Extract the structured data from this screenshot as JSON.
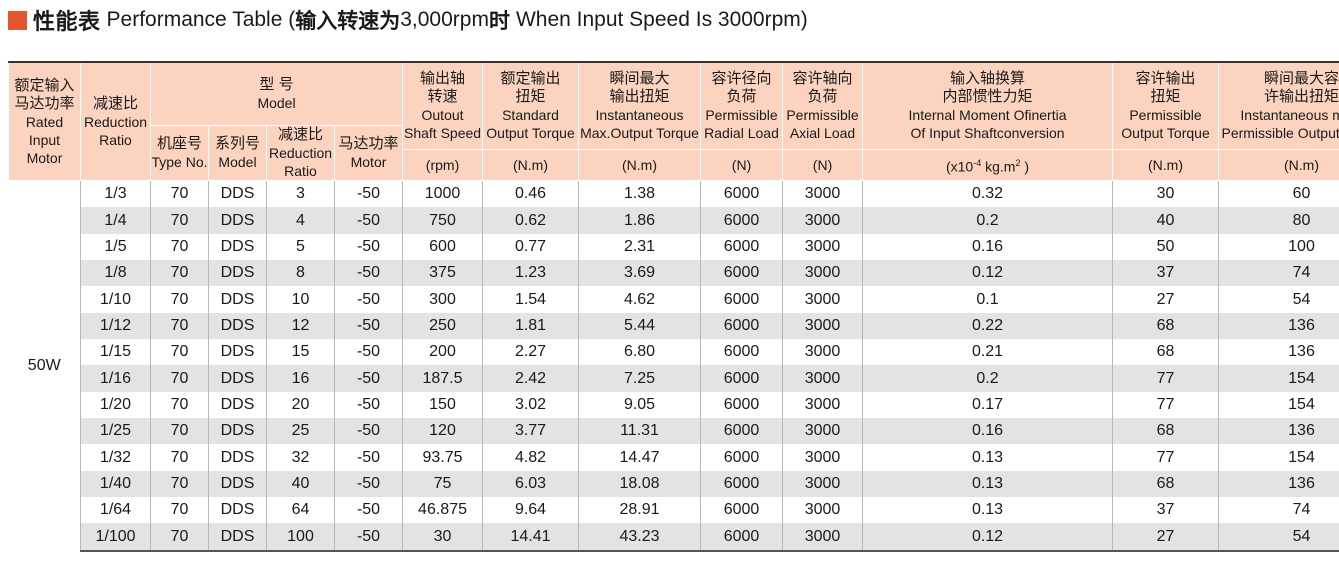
{
  "title": {
    "cn": "性能表",
    "en": "Performance Table (",
    "cn2": "输入转速为",
    "en2": "3,000rpm",
    "cn3": "时",
    "en3": "When Input Speed Is 3000rpm)"
  },
  "header": {
    "rated_input": {
      "cn1": "额定输入",
      "cn2": "马达功率",
      "en1": "Rated Input",
      "en2": "Motor"
    },
    "reduction_ratio": {
      "cn": "减速比",
      "en1": "Reduction",
      "en2": "Ratio"
    },
    "model": {
      "cn": "型 号",
      "en": "Model"
    },
    "type_no": {
      "cn": "机座号",
      "en": "Type No."
    },
    "series": {
      "cn": "系列号",
      "en": "Model"
    },
    "reduction_ratio2": {
      "cn": "减速比",
      "en1": "Reduction",
      "en2": "Ratio"
    },
    "motor": {
      "cn": "马达功率",
      "en": "Motor"
    },
    "output_speed": {
      "cn1": "输出轴",
      "cn2": "转速",
      "en1": "Outout",
      "en2": "Shaft Speed",
      "unit": "(rpm)"
    },
    "standard_torque": {
      "cn1": "额定输出",
      "cn2": "扭矩",
      "en1": "Standard",
      "en2": "Output Torque",
      "unit": "(N.m)"
    },
    "max_torque": {
      "cn1": "瞬间最大",
      "cn2": "输出扭矩",
      "en1": "Instantaneous",
      "en2": "Max.Output Torque",
      "unit": "(N.m)"
    },
    "radial_load": {
      "cn1": "容许径向",
      "cn2": "负荷",
      "en1": "Permissible",
      "en2": "Radial Load",
      "unit": "(N)"
    },
    "axial_load": {
      "cn1": "容许轴向",
      "cn2": "负荷",
      "en1": "Permissible",
      "en2": "Axial Load",
      "unit": "(N)"
    },
    "inertia": {
      "cn1": "输入轴换算",
      "cn2": "内部惯性力矩",
      "en1": "Internal Moment Ofinertia",
      "en2": "Of Input Shaftconversion",
      "unit_pre": "(x10",
      "unit_exp": "-4",
      "unit_mid": " kg.m",
      "unit_sq": "2",
      "unit_post": " )"
    },
    "perm_torque": {
      "cn1": "容许输出",
      "cn2": "扭矩",
      "en1": "Permissible",
      "en2": "Output Torque",
      "unit": "(N.m)"
    },
    "inst_perm_torque": {
      "cn1": "瞬间最大容",
      "cn2": "许输出扭矩",
      "en1": "Instantaneous max.",
      "en2": "Permissible Output Toque",
      "unit": "(N.m)"
    }
  },
  "motor_power": "50W",
  "rows": [
    [
      "1/3",
      "70",
      "DDS",
      "3",
      "-50",
      "1000",
      "0.46",
      "1.38",
      "6000",
      "3000",
      "0.32",
      "30",
      "60"
    ],
    [
      "1/4",
      "70",
      "DDS",
      "4",
      "-50",
      "750",
      "0.62",
      "1.86",
      "6000",
      "3000",
      "0.2",
      "40",
      "80"
    ],
    [
      "1/5",
      "70",
      "DDS",
      "5",
      "-50",
      "600",
      "0.77",
      "2.31",
      "6000",
      "3000",
      "0.16",
      "50",
      "100"
    ],
    [
      "1/8",
      "70",
      "DDS",
      "8",
      "-50",
      "375",
      "1.23",
      "3.69",
      "6000",
      "3000",
      "0.12",
      "37",
      "74"
    ],
    [
      "1/10",
      "70",
      "DDS",
      "10",
      "-50",
      "300",
      "1.54",
      "4.62",
      "6000",
      "3000",
      "0.1",
      "27",
      "54"
    ],
    [
      "1/12",
      "70",
      "DDS",
      "12",
      "-50",
      "250",
      "1.81",
      "5.44",
      "6000",
      "3000",
      "0.22",
      "68",
      "136"
    ],
    [
      "1/15",
      "70",
      "DDS",
      "15",
      "-50",
      "200",
      "2.27",
      "6.80",
      "6000",
      "3000",
      "0.21",
      "68",
      "136"
    ],
    [
      "1/16",
      "70",
      "DDS",
      "16",
      "-50",
      "187.5",
      "2.42",
      "7.25",
      "6000",
      "3000",
      "0.2",
      "77",
      "154"
    ],
    [
      "1/20",
      "70",
      "DDS",
      "20",
      "-50",
      "150",
      "3.02",
      "9.05",
      "6000",
      "3000",
      "0.17",
      "77",
      "154"
    ],
    [
      "1/25",
      "70",
      "DDS",
      "25",
      "-50",
      "120",
      "3.77",
      "11.31",
      "6000",
      "3000",
      "0.16",
      "68",
      "136"
    ],
    [
      "1/32",
      "70",
      "DDS",
      "32",
      "-50",
      "93.75",
      "4.82",
      "14.47",
      "6000",
      "3000",
      "0.13",
      "77",
      "154"
    ],
    [
      "1/40",
      "70",
      "DDS",
      "40",
      "-50",
      "75",
      "6.03",
      "18.08",
      "6000",
      "3000",
      "0.13",
      "68",
      "136"
    ],
    [
      "1/64",
      "70",
      "DDS",
      "64",
      "-50",
      "46.875",
      "9.64",
      "28.91",
      "6000",
      "3000",
      "0.13",
      "37",
      "74"
    ],
    [
      "1/100",
      "70",
      "DDS",
      "100",
      "-50",
      "30",
      "14.41",
      "43.23",
      "6000",
      "3000",
      "0.12",
      "27",
      "54"
    ]
  ],
  "colors": {
    "accent": "#e4572e",
    "header_bg": "#fbd3bf",
    "row_shade": "#e3e3e3"
  }
}
